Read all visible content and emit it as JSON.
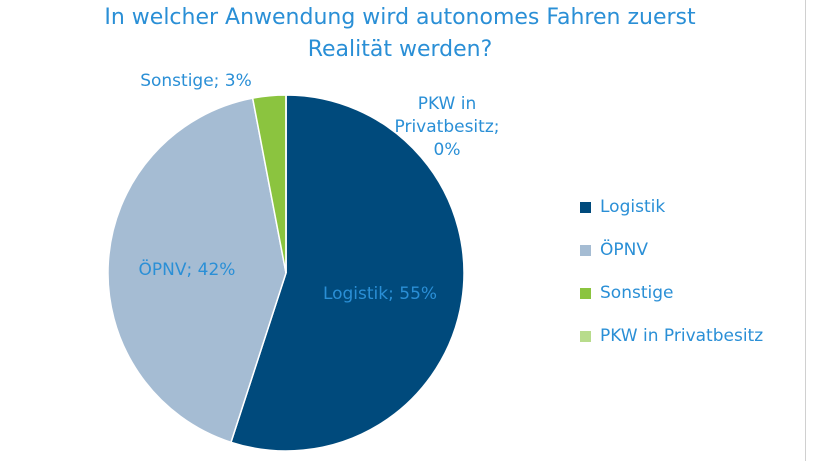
{
  "chart_data": {
    "type": "pie",
    "title": "In welcher Anwendung wird autonomes Fahren zuerst Realität werden?",
    "title_lines": [
      "In welcher Anwendung wird autonomes Fahren zuerst",
      "Realität werden?"
    ],
    "slices": [
      {
        "label": "Logistik",
        "value": 55,
        "color": "#004a7c",
        "data_label": "Logistik; 55%"
      },
      {
        "label": "ÖPNV",
        "value": 42,
        "color": "#a5bcd3",
        "data_label": "ÖPNV; 42%"
      },
      {
        "label": "Sonstige",
        "value": 3,
        "color": "#8bc43f",
        "data_label": "Sonstige; 3%"
      },
      {
        "label": "PKW in Privatbesitz",
        "value": 0,
        "color": "#b8dc8c",
        "data_label": "PKW in Privatbesitz; 0%",
        "data_label_lines": [
          "PKW in",
          "Privatbesitz;",
          "0%"
        ]
      }
    ],
    "legend_position": "right",
    "text_color": "#2a8fd6"
  }
}
